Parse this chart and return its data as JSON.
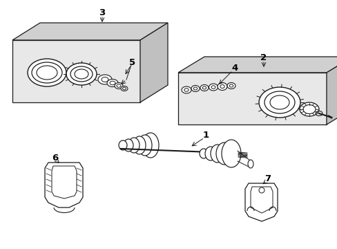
{
  "background_color": "#ffffff",
  "panel_color": "#e8e8e8",
  "panel_color2": "#d0d0d0",
  "panel_color3": "#c0c0c0",
  "line_color": "#1a1a1a",
  "figsize": [
    4.89,
    3.6
  ],
  "dpi": 100,
  "parts": {
    "1": "1",
    "2": "2",
    "3": "3",
    "4": "4",
    "5": "5",
    "6": "6",
    "7": "7"
  }
}
